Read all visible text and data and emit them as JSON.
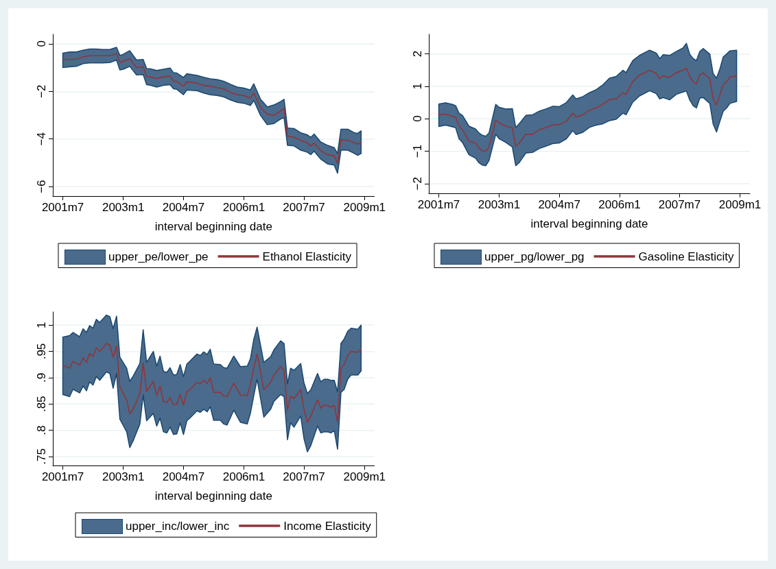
{
  "chart_data": [
    {
      "type": "line",
      "xlabel": "interval beginning date",
      "legend": "bottom",
      "grid": "y",
      "legend_title": "upper_pe/lower_pe",
      "x": [
        "2001-07",
        "2001-09",
        "2001-11",
        "2002-01",
        "2002-03",
        "2002-05",
        "2002-07",
        "2002-09",
        "2002-11",
        "2002-12",
        "2003-01",
        "2003-03",
        "2003-05",
        "2003-07",
        "2003-08",
        "2003-09",
        "2003-11",
        "2004-01",
        "2004-03",
        "2004-04",
        "2004-05",
        "2004-07",
        "2004-08",
        "2004-11",
        "2005-01",
        "2005-03",
        "2005-05",
        "2005-07",
        "2005-09",
        "2005-11",
        "2006-01",
        "2006-03",
        "2006-04",
        "2006-06",
        "2006-08",
        "2006-10",
        "2006-12",
        "2007-01",
        "2007-02",
        "2007-04",
        "2007-06",
        "2007-08",
        "2007-09",
        "2007-10",
        "2007-12",
        "2008-02",
        "2008-04",
        "2008-05",
        "2008-06",
        "2008-08",
        "2008-10",
        "2008-11",
        "2008-12"
      ],
      "xlim": [
        "2001-04",
        "2009-04"
      ],
      "xticks": [
        {
          "value": "2001-07",
          "label": "2001m7"
        },
        {
          "value": "2003-01",
          "label": "2003m1"
        },
        {
          "value": "2004-07",
          "label": "2004m7"
        },
        {
          "value": "2006-01",
          "label": "2006m1"
        },
        {
          "value": "2007-07",
          "label": "2007m7"
        },
        {
          "value": "2009-01",
          "label": "2009m1"
        }
      ],
      "ylim": [
        -6.4,
        0.4
      ],
      "yticks": [
        {
          "value": -6,
          "label": "−6"
        },
        {
          "value": -4,
          "label": "−4"
        },
        {
          "value": -2,
          "label": "−2"
        },
        0
      ],
      "series": [
        {
          "name": "Ethanol Elasticity",
          "color": "#90353b",
          "values": [
            -0.68,
            -0.65,
            -0.65,
            -0.55,
            -0.5,
            -0.5,
            -0.5,
            -0.5,
            -0.42,
            -0.78,
            -0.73,
            -0.63,
            -1.0,
            -0.97,
            -1.38,
            -1.39,
            -1.46,
            -1.39,
            -1.36,
            -1.57,
            -1.58,
            -1.78,
            -1.6,
            -1.65,
            -1.75,
            -1.78,
            -1.84,
            -1.89,
            -2.04,
            -2.14,
            -2.18,
            -2.28,
            -2.07,
            -2.67,
            -2.96,
            -3.01,
            -2.82,
            -2.72,
            -3.88,
            -3.93,
            -4.05,
            -4.17,
            -4.3,
            -4.17,
            -4.5,
            -4.66,
            -4.71,
            -5.02,
            -4.03,
            -4.05,
            -4.17,
            -4.22,
            -4.14
          ],
          "upper": [
            -0.39,
            -0.34,
            -0.34,
            -0.27,
            -0.22,
            -0.22,
            -0.24,
            -0.24,
            -0.15,
            -0.49,
            -0.44,
            -0.29,
            -0.68,
            -0.66,
            -1.04,
            -1.05,
            -1.12,
            -1.07,
            -1.02,
            -1.21,
            -1.23,
            -1.41,
            -1.26,
            -1.33,
            -1.41,
            -1.47,
            -1.5,
            -1.57,
            -1.7,
            -1.82,
            -1.86,
            -1.94,
            -1.68,
            -2.33,
            -2.65,
            -2.57,
            -2.43,
            -2.33,
            -3.54,
            -3.56,
            -3.74,
            -3.83,
            -3.93,
            -3.79,
            -4.13,
            -4.27,
            -4.37,
            -4.61,
            -3.59,
            -3.59,
            -3.74,
            -3.76,
            -3.66
          ],
          "lower": [
            -1.0,
            -0.97,
            -0.95,
            -0.83,
            -0.8,
            -0.8,
            -0.8,
            -0.79,
            -0.68,
            -1.1,
            -1.07,
            -0.95,
            -1.31,
            -1.29,
            -1.72,
            -1.74,
            -1.82,
            -1.75,
            -1.72,
            -1.89,
            -1.91,
            -2.14,
            -1.94,
            -1.97,
            -2.07,
            -2.14,
            -2.17,
            -2.23,
            -2.36,
            -2.46,
            -2.5,
            -2.59,
            -2.38,
            -3.01,
            -3.4,
            -3.35,
            -3.16,
            -3.11,
            -4.27,
            -4.29,
            -4.47,
            -4.56,
            -4.66,
            -4.51,
            -4.85,
            -5.05,
            -5.1,
            -5.44,
            -4.47,
            -4.47,
            -4.61,
            -4.69,
            -4.61
          ]
        }
      ]
    },
    {
      "type": "line",
      "xlabel": "interval beginning date",
      "legend": "bottom",
      "grid": "y",
      "legend_title": "upper_pg/lower_pg",
      "x": [
        "2001-07",
        "2001-09",
        "2001-11",
        "2001-12",
        "2002-01",
        "2002-02",
        "2002-04",
        "2002-06",
        "2002-07",
        "2002-08",
        "2002-09",
        "2002-10",
        "2002-12",
        "2003-01",
        "2003-03",
        "2003-05",
        "2003-06",
        "2003-07",
        "2003-09",
        "2003-11",
        "2004-01",
        "2004-03",
        "2004-05",
        "2004-07",
        "2004-09",
        "2004-11",
        "2004-12",
        "2005-02",
        "2005-04",
        "2005-06",
        "2005-08",
        "2005-10",
        "2005-12",
        "2006-02",
        "2006-03",
        "2006-05",
        "2006-07",
        "2006-10",
        "2006-12",
        "2007-01",
        "2007-02",
        "2007-04",
        "2007-06",
        "2007-08",
        "2007-09",
        "2007-10",
        "2007-11",
        "2007-12",
        "2008-01",
        "2008-02",
        "2008-04",
        "2008-05",
        "2008-06",
        "2008-07",
        "2008-08",
        "2008-09",
        "2008-10",
        "2008-12"
      ],
      "xlim": [
        "2001-04",
        "2009-04"
      ],
      "xticks": [
        {
          "value": "2001-07",
          "label": "2001m7"
        },
        {
          "value": "2003-01",
          "label": "2003m1"
        },
        {
          "value": "2004-07",
          "label": "2004m7"
        },
        {
          "value": "2006-01",
          "label": "2006m1"
        },
        {
          "value": "2007-07",
          "label": "2007m7"
        },
        {
          "value": "2009-01",
          "label": "2009m1"
        }
      ],
      "ylim": [
        -2.3,
        2.6
      ],
      "yticks": [
        {
          "value": -2,
          "label": "−2"
        },
        {
          "value": -1,
          "label": "−1"
        },
        0,
        1,
        2
      ],
      "series": [
        {
          "name": "Gasoline Elasticity",
          "color": "#90353b",
          "values": [
            0.11,
            0.14,
            0.07,
            0.05,
            -0.23,
            -0.34,
            -0.69,
            -0.76,
            -0.9,
            -0.99,
            -1.01,
            -0.87,
            -0.04,
            -0.13,
            -0.23,
            -0.29,
            -0.85,
            -0.76,
            -0.48,
            -0.48,
            -0.34,
            -0.27,
            -0.2,
            -0.18,
            -0.09,
            0.17,
            0.05,
            0.12,
            0.26,
            0.33,
            0.44,
            0.59,
            0.61,
            0.8,
            0.75,
            1.14,
            1.34,
            1.49,
            1.39,
            1.23,
            1.32,
            1.27,
            1.42,
            1.49,
            1.56,
            1.3,
            1.14,
            1.07,
            1.35,
            1.41,
            1.23,
            0.61,
            0.42,
            0.72,
            1.06,
            1.14,
            1.28,
            1.32
          ],
          "upper": [
            0.45,
            0.49,
            0.44,
            0.4,
            0.17,
            0.1,
            -0.23,
            -0.32,
            -0.44,
            -0.51,
            -0.54,
            -0.44,
            0.44,
            0.35,
            0.3,
            0.31,
            -0.27,
            -0.16,
            0.1,
            0.12,
            0.23,
            0.3,
            0.38,
            0.37,
            0.49,
            0.73,
            0.61,
            0.68,
            0.8,
            0.89,
            1.04,
            1.25,
            1.3,
            1.49,
            1.42,
            1.79,
            1.95,
            2.11,
            2.02,
            1.85,
            1.97,
            1.95,
            2.07,
            2.18,
            2.32,
            1.99,
            1.85,
            1.79,
            2.07,
            2.16,
            1.99,
            1.39,
            1.25,
            1.53,
            1.9,
            1.99,
            2.09,
            2.11
          ],
          "lower": [
            -0.24,
            -0.2,
            -0.25,
            -0.28,
            -0.62,
            -0.73,
            -1.11,
            -1.22,
            -1.36,
            -1.43,
            -1.45,
            -1.29,
            -0.48,
            -0.62,
            -0.73,
            -0.87,
            -1.45,
            -1.36,
            -1.06,
            -1.04,
            -0.92,
            -0.85,
            -0.77,
            -0.75,
            -0.63,
            -0.37,
            -0.49,
            -0.42,
            -0.27,
            -0.2,
            -0.16,
            -0.06,
            -0.02,
            0.17,
            0.12,
            0.51,
            0.7,
            0.86,
            0.77,
            0.61,
            0.65,
            0.58,
            0.75,
            0.82,
            0.85,
            0.58,
            0.4,
            0.33,
            0.63,
            0.65,
            0.47,
            -0.16,
            -0.41,
            -0.09,
            0.23,
            0.33,
            0.47,
            0.53
          ]
        }
      ]
    },
    {
      "type": "line",
      "xlabel": "interval beginning date",
      "legend": "bottom",
      "grid": "y",
      "legend_title": "upper_inc/lower_inc",
      "x": [
        "2001-07",
        "2001-09",
        "2001-10",
        "2001-12",
        "2002-01",
        "2002-02",
        "2002-03",
        "2002-04",
        "2002-05",
        "2002-06",
        "2002-08",
        "2002-09",
        "2002-10",
        "2002-11",
        "2002-12",
        "2003-02",
        "2003-03",
        "2003-04",
        "2003-06",
        "2003-07",
        "2003-08",
        "2003-10",
        "2003-11",
        "2003-12",
        "2004-01",
        "2004-02",
        "2004-03",
        "2004-04",
        "2004-05",
        "2004-06",
        "2004-07",
        "2004-08",
        "2004-09",
        "2004-11",
        "2004-12",
        "2005-01",
        "2005-02",
        "2005-03",
        "2005-04",
        "2005-06",
        "2005-07",
        "2005-08",
        "2005-10",
        "2005-12",
        "2006-02",
        "2006-03",
        "2006-04",
        "2006-05",
        "2006-07",
        "2006-09",
        "2006-10",
        "2006-12",
        "2007-01",
        "2007-02",
        "2007-03",
        "2007-04",
        "2007-06",
        "2007-07",
        "2007-08",
        "2007-09",
        "2007-11",
        "2007-12",
        "2008-01",
        "2008-02",
        "2008-03",
        "2008-04",
        "2008-05",
        "2008-06",
        "2008-07",
        "2008-08",
        "2008-09",
        "2008-11",
        "2008-12"
      ],
      "xlim": [
        "2001-04",
        "2009-04"
      ],
      "xticks": [
        {
          "value": "2001-07",
          "label": "2001m7"
        },
        {
          "value": "2003-01",
          "label": "2003m1"
        },
        {
          "value": "2004-07",
          "label": "2004m7"
        },
        {
          "value": "2006-01",
          "label": "2006m1"
        },
        {
          "value": "2007-07",
          "label": "2007m7"
        },
        {
          "value": "2009-01",
          "label": "2009m1"
        }
      ],
      "ylim": [
        0.733,
        1.025
      ],
      "yticks": [
        {
          "value": 0.75,
          "label": ".75"
        },
        {
          "value": 0.8,
          "label": ".8"
        },
        {
          "value": 0.85,
          "label": ".85"
        },
        {
          "value": 0.9,
          "label": ".9"
        },
        {
          "value": 0.95,
          "label": ".95"
        },
        1
      ],
      "series": [
        {
          "name": "Income Elasticity",
          "color": "#90353b",
          "values": [
            0.923,
            0.918,
            0.931,
            0.924,
            0.938,
            0.929,
            0.946,
            0.94,
            0.957,
            0.95,
            0.965,
            0.962,
            0.939,
            0.96,
            0.882,
            0.858,
            0.831,
            0.84,
            0.87,
            0.928,
            0.874,
            0.893,
            0.866,
            0.884,
            0.855,
            0.853,
            0.862,
            0.849,
            0.849,
            0.868,
            0.848,
            0.873,
            0.878,
            0.891,
            0.888,
            0.895,
            0.889,
            0.9,
            0.872,
            0.872,
            0.865,
            0.864,
            0.89,
            0.867,
            0.866,
            0.888,
            0.918,
            0.945,
            0.877,
            0.891,
            0.905,
            0.921,
            0.914,
            0.838,
            0.865,
            0.86,
            0.877,
            0.84,
            0.815,
            0.827,
            0.858,
            0.842,
            0.848,
            0.847,
            0.844,
            0.847,
            0.816,
            0.918,
            0.925,
            0.942,
            0.95,
            0.948,
            0.955
          ],
          "upper": [
            0.977,
            0.98,
            0.986,
            0.978,
            0.993,
            0.986,
            0.999,
            0.994,
            1.011,
            1.005,
            1.019,
            1.016,
            0.993,
            1.017,
            0.939,
            0.918,
            0.893,
            0.903,
            0.927,
            0.991,
            0.929,
            0.95,
            0.922,
            0.941,
            0.912,
            0.91,
            0.919,
            0.905,
            0.906,
            0.925,
            0.902,
            0.926,
            0.932,
            0.945,
            0.942,
            0.949,
            0.944,
            0.954,
            0.926,
            0.925,
            0.919,
            0.918,
            0.941,
            0.921,
            0.922,
            0.936,
            0.973,
            0.996,
            0.929,
            0.94,
            0.953,
            0.97,
            0.965,
            0.888,
            0.918,
            0.914,
            0.927,
            0.89,
            0.87,
            0.877,
            0.908,
            0.892,
            0.897,
            0.897,
            0.895,
            0.895,
            0.873,
            0.965,
            0.974,
            0.988,
            0.994,
            0.992,
            1.0
          ],
          "lower": [
            0.868,
            0.864,
            0.878,
            0.871,
            0.884,
            0.875,
            0.892,
            0.886,
            0.902,
            0.895,
            0.911,
            0.908,
            0.88,
            0.908,
            0.821,
            0.797,
            0.767,
            0.78,
            0.812,
            0.867,
            0.818,
            0.832,
            0.808,
            0.823,
            0.797,
            0.795,
            0.806,
            0.792,
            0.793,
            0.814,
            0.792,
            0.818,
            0.824,
            0.837,
            0.834,
            0.84,
            0.835,
            0.845,
            0.819,
            0.819,
            0.812,
            0.81,
            0.838,
            0.815,
            0.812,
            0.832,
            0.866,
            0.897,
            0.825,
            0.84,
            0.855,
            0.868,
            0.864,
            0.782,
            0.814,
            0.806,
            0.827,
            0.784,
            0.759,
            0.771,
            0.808,
            0.795,
            0.797,
            0.797,
            0.795,
            0.799,
            0.764,
            0.872,
            0.878,
            0.897,
            0.905,
            0.905,
            0.913
          ]
        }
      ]
    }
  ]
}
